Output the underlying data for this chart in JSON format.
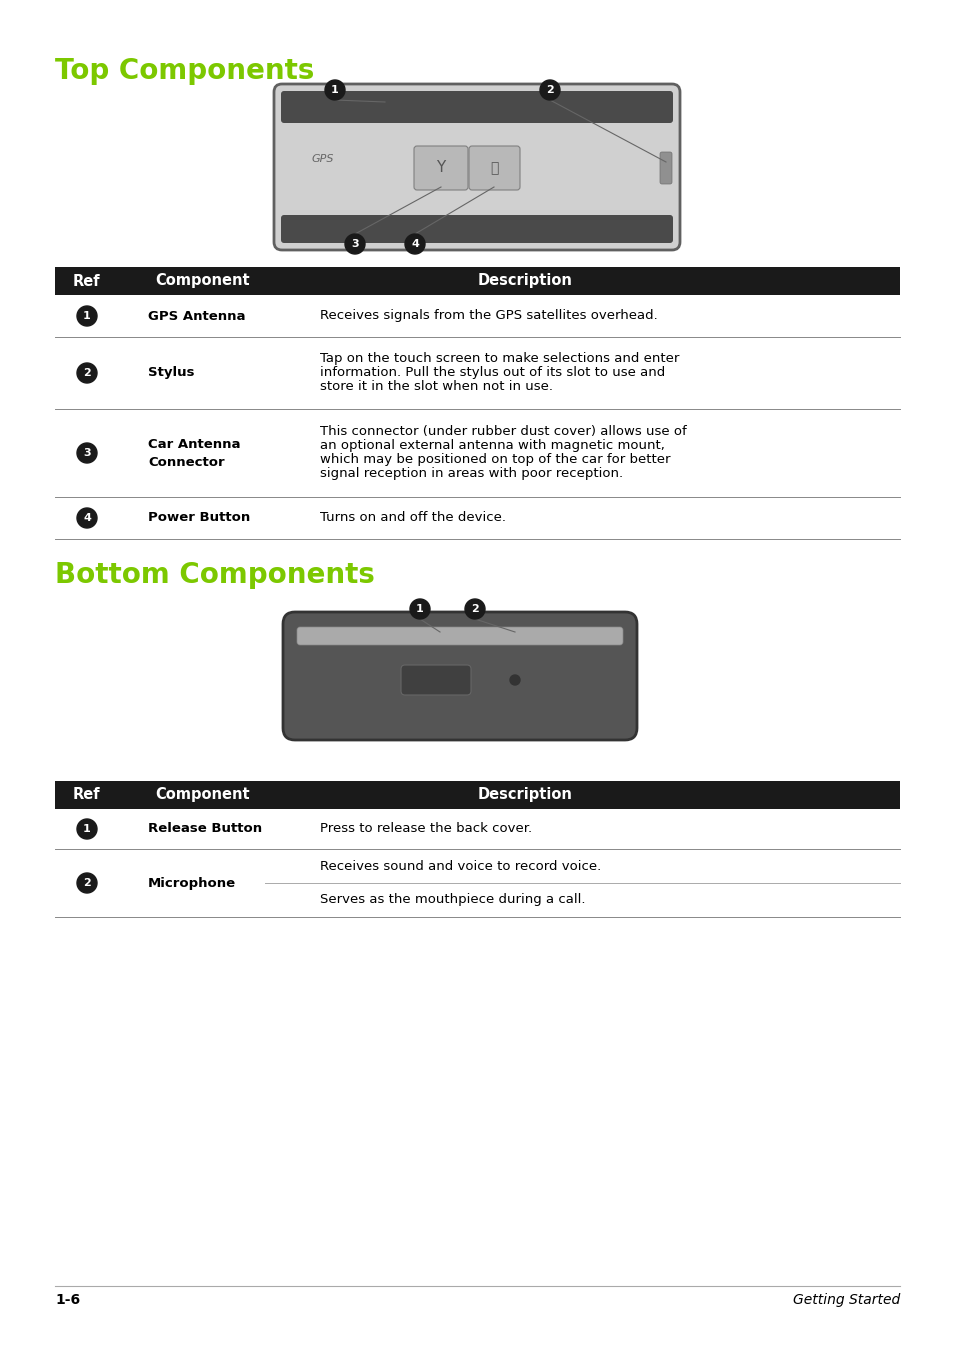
{
  "page_bg": "#ffffff",
  "title_color": "#7cc800",
  "title_top": "Top Components",
  "title_bottom": "Bottom Components",
  "title_fontsize": 20,
  "header_bg": "#1a1a1a",
  "header_fg": "#ffffff",
  "header_fontsize": 10.5,
  "body_fontsize": 9.5,
  "bold_fontsize": 9.5,
  "footer_left": "1-6",
  "footer_right": "Getting Started",
  "top_table_rows": [
    {
      "ref": "1",
      "component": "GPS Antenna",
      "component2": "",
      "description": [
        "Receives signals from the GPS satellites overhead."
      ]
    },
    {
      "ref": "2",
      "component": "Stylus",
      "component2": "",
      "description": [
        "Tap on the touch screen to make selections and enter",
        "information. Pull the stylus out of its slot to use and",
        "store it in the slot when not in use."
      ]
    },
    {
      "ref": "3",
      "component": "Car Antenna",
      "component2": "Connector",
      "description": [
        "This connector (under rubber dust cover) allows use of",
        "an optional external antenna with magnetic mount,",
        "which may be positioned on top of the car for better",
        "signal reception in areas with poor reception."
      ]
    },
    {
      "ref": "4",
      "component": "Power Button",
      "component2": "",
      "description": [
        "Turns on and off the device."
      ]
    }
  ],
  "bottom_table_rows": [
    {
      "ref": "1",
      "component": "Release Button",
      "component2": "",
      "description": [
        "Press to release the back cover."
      ],
      "sub_divider": false
    },
    {
      "ref": "2",
      "component": "Microphone",
      "component2": "",
      "description": [
        "Receives sound and voice to record voice.",
        "Serves as the mouthpiece during a call."
      ],
      "sub_divider": true
    }
  ]
}
